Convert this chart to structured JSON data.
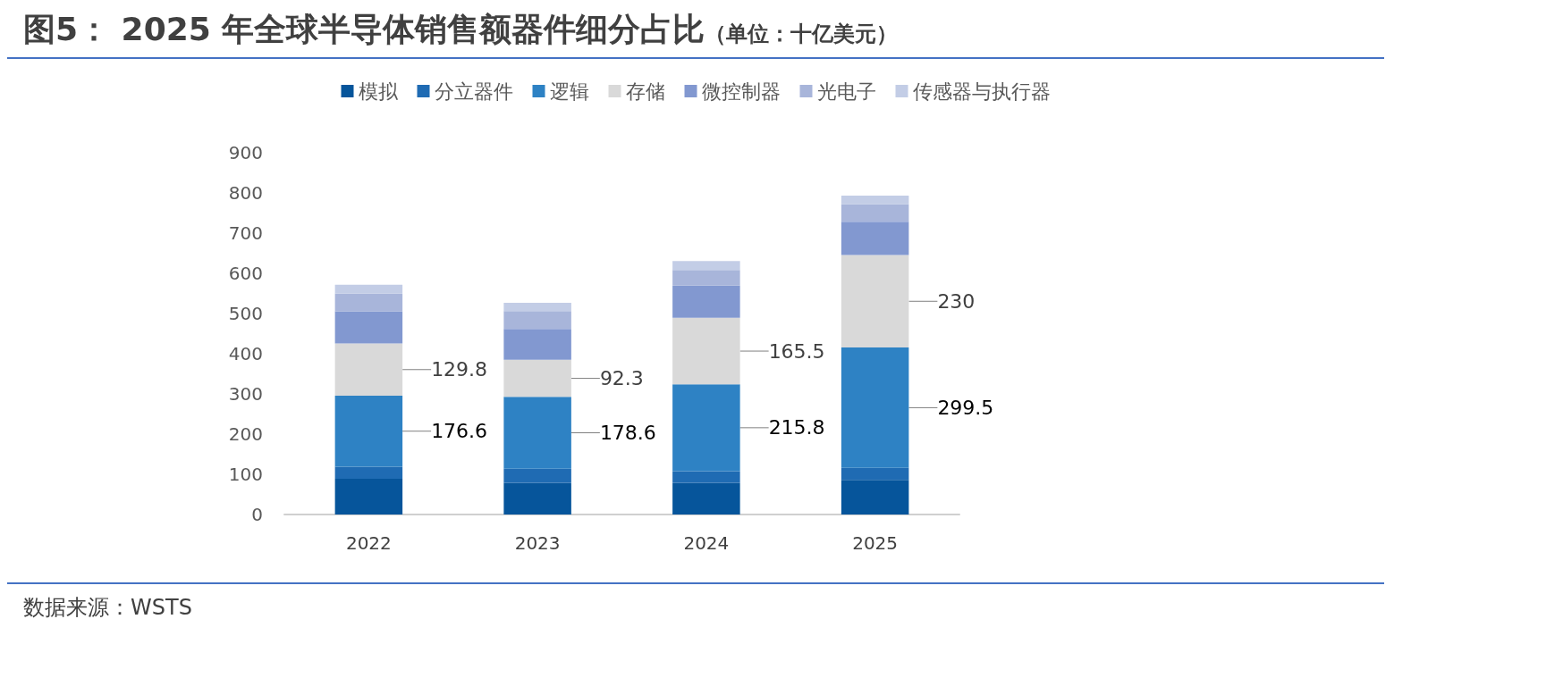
{
  "chart_data": {
    "type": "bar",
    "title": "图5： 2025 年全球半导体销售额器件细分占比",
    "subtitle": "（单位：十亿美元）",
    "categories": [
      "2022",
      "2023",
      "2024",
      "2025"
    ],
    "stacked": true,
    "grid": false,
    "legend": "top",
    "ylim": [
      0,
      900
    ],
    "yticks": [
      0,
      100,
      200,
      300,
      400,
      500,
      600,
      700,
      800,
      900
    ],
    "series": [
      {
        "name": "模拟",
        "color": "#06559b",
        "values": [
          89,
          79,
          79,
          86
        ]
      },
      {
        "name": "分立器件",
        "color": "#1f6bb3",
        "values": [
          30,
          35,
          29,
          30
        ]
      },
      {
        "name": "逻辑",
        "color": "#2e82c4",
        "values": [
          176.6,
          178.6,
          215.8,
          299.5
        ],
        "value_labels": [
          "176.6",
          "178.6",
          "215.8",
          "299.5"
        ]
      },
      {
        "name": "存储",
        "color": "#d9d9d9",
        "values": [
          129.8,
          92.3,
          165.5,
          230
        ],
        "value_labels": [
          "129.8",
          "92.3",
          "165.5",
          "230"
        ]
      },
      {
        "name": "微控制器",
        "color": "#8298d0",
        "values": [
          80,
          77,
          80,
          83
        ]
      },
      {
        "name": "光电子",
        "color": "#a8b5da",
        "values": [
          44,
          44,
          39,
          44
        ]
      },
      {
        "name": "传感器与执行器",
        "color": "#c3cde6",
        "values": [
          22,
          21,
          22,
          21
        ]
      }
    ],
    "annotations": [
      "数据来源：WSTS"
    ]
  }
}
